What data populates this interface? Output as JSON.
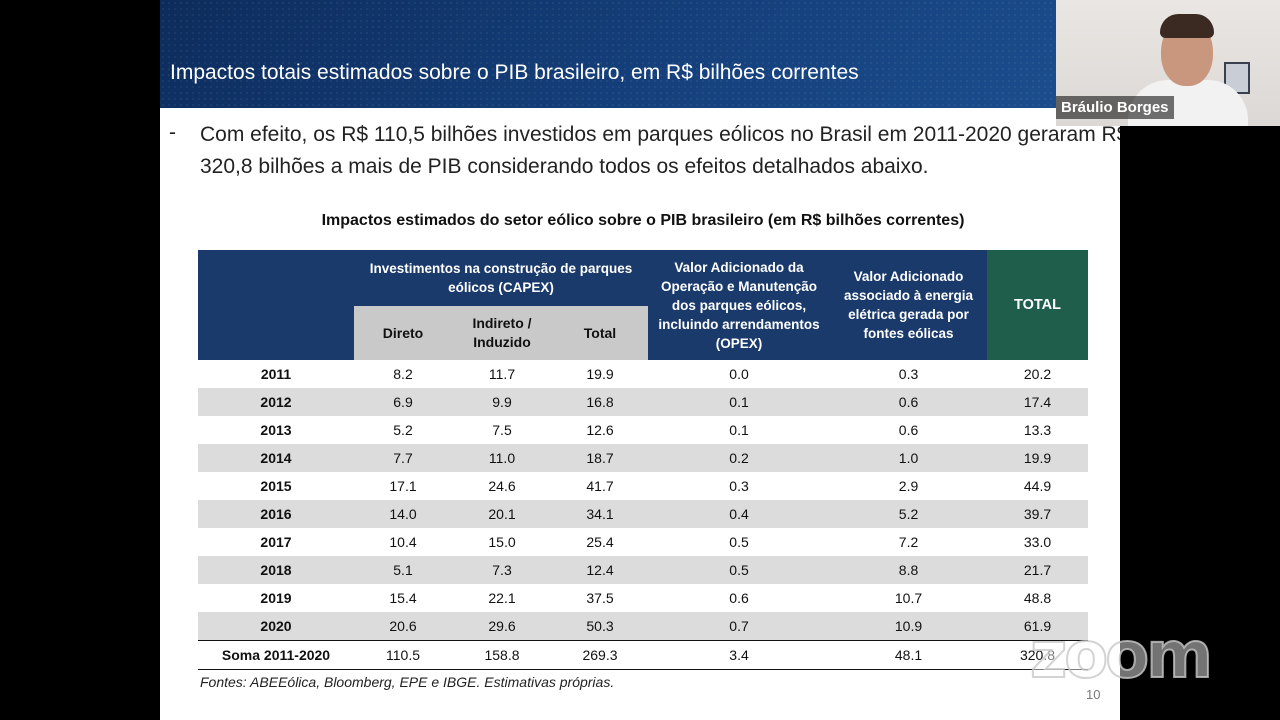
{
  "slide": {
    "banner_title": "Impactos totais estimados sobre o PIB brasileiro, em R$ bilhões correntes",
    "bullet_dash": "-",
    "bullet_text": "Com efeito, os R$ 110,5 bilhões investidos em parques eólicos no Brasil em 2011-2020 geraram R$ 320,8 bilhões a mais de PIB considerando todos os efeitos detalhados abaixo.",
    "table_title": "Impactos estimados do setor eólico sobre o PIB brasileiro (em R$ bilhões correntes)",
    "source_note": "Fontes: ABEEólica, Bloomberg, EPE e IBGE. Estimativas próprias.",
    "page_number": "10"
  },
  "table": {
    "headers": {
      "capex_group": "Investimentos na construção de parques eólicos (CAPEX)",
      "direto": "Direto",
      "indireto": "Indireto / Induzido",
      "total_capex": "Total",
      "opex": "Valor Adicionado da Operação e Manutenção dos parques eólicos, incluindo arrendamentos (OPEX)",
      "energia": "Valor Adicionado associado à energia elétrica gerada por fontes eólicas",
      "total": "TOTAL"
    },
    "rows": [
      {
        "year": "2011",
        "direto": "8.2",
        "indireto": "11.7",
        "total_capex": "19.9",
        "opex": "0.0",
        "energia": "0.3",
        "total": "20.2"
      },
      {
        "year": "2012",
        "direto": "6.9",
        "indireto": "9.9",
        "total_capex": "16.8",
        "opex": "0.1",
        "energia": "0.6",
        "total": "17.4"
      },
      {
        "year": "2013",
        "direto": "5.2",
        "indireto": "7.5",
        "total_capex": "12.6",
        "opex": "0.1",
        "energia": "0.6",
        "total": "13.3"
      },
      {
        "year": "2014",
        "direto": "7.7",
        "indireto": "11.0",
        "total_capex": "18.7",
        "opex": "0.2",
        "energia": "1.0",
        "total": "19.9"
      },
      {
        "year": "2015",
        "direto": "17.1",
        "indireto": "24.6",
        "total_capex": "41.7",
        "opex": "0.3",
        "energia": "2.9",
        "total": "44.9"
      },
      {
        "year": "2016",
        "direto": "14.0",
        "indireto": "20.1",
        "total_capex": "34.1",
        "opex": "0.4",
        "energia": "5.2",
        "total": "39.7"
      },
      {
        "year": "2017",
        "direto": "10.4",
        "indireto": "15.0",
        "total_capex": "25.4",
        "opex": "0.5",
        "energia": "7.2",
        "total": "33.0"
      },
      {
        "year": "2018",
        "direto": "5.1",
        "indireto": "7.3",
        "total_capex": "12.4",
        "opex": "0.5",
        "energia": "8.8",
        "total": "21.7"
      },
      {
        "year": "2019",
        "direto": "15.4",
        "indireto": "22.1",
        "total_capex": "37.5",
        "opex": "0.6",
        "energia": "10.7",
        "total": "48.8"
      },
      {
        "year": "2020",
        "direto": "20.6",
        "indireto": "29.6",
        "total_capex": "50.3",
        "opex": "0.7",
        "energia": "10.9",
        "total": "61.9"
      }
    ],
    "sum_row": {
      "year": "Soma 2011-2020",
      "direto": "110.5",
      "indireto": "158.8",
      "total_capex": "269.3",
      "opex": "3.4",
      "energia": "48.1",
      "total": "320.8"
    }
  },
  "webcam": {
    "participant_name": "Bráulio Borges"
  },
  "overlay": {
    "logo_text": "zoom"
  },
  "colors": {
    "banner": "#10356b",
    "header_navy": "#1a3a6b",
    "header_sub_gray": "#c9c9c9",
    "total_green": "#1f5e4a",
    "stripe_gray": "#dcdcdc"
  }
}
